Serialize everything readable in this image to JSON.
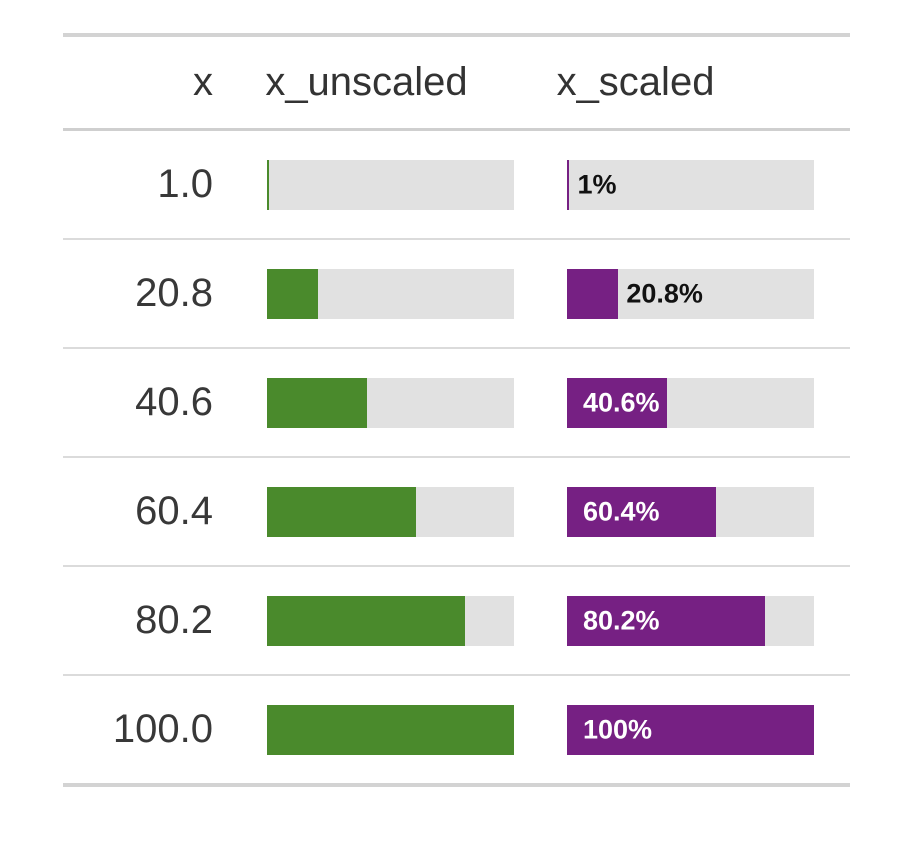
{
  "header": {
    "columns": [
      {
        "label": "x"
      },
      {
        "label": "x_unscaled"
      },
      {
        "label": "x_scaled"
      }
    ]
  },
  "rows": [
    {
      "x": "1.0",
      "unscaled_pct": 1,
      "scaled_pct": 1,
      "scaled_label": "1%",
      "label_position": "outside"
    },
    {
      "x": "20.8",
      "unscaled_pct": 20.8,
      "scaled_pct": 20.8,
      "scaled_label": "20.8%",
      "label_position": "outside"
    },
    {
      "x": "40.6",
      "unscaled_pct": 40.6,
      "scaled_pct": 40.6,
      "scaled_label": "40.6%",
      "label_position": "inside"
    },
    {
      "x": "60.4",
      "unscaled_pct": 60.4,
      "scaled_pct": 60.4,
      "scaled_label": "60.4%",
      "label_position": "inside"
    },
    {
      "x": "80.2",
      "unscaled_pct": 80.2,
      "scaled_pct": 80.2,
      "scaled_label": "80.2%",
      "label_position": "inside"
    },
    {
      "x": "100.0",
      "unscaled_pct": 100,
      "scaled_pct": 100,
      "scaled_label": "100%",
      "label_position": "inside"
    }
  ],
  "colors": {
    "unscaled_fill": "#4a8a2c",
    "scaled_fill": "#762083",
    "bar_background": "#e1e1e1",
    "label_inside_text": "#ffffff",
    "label_outside_text": "#111111",
    "header_text": "#333333",
    "body_text": "#383838",
    "rule": "#d3d3d3"
  },
  "chart_data": {
    "type": "table",
    "title": "",
    "columns": [
      "x",
      "x_unscaled",
      "x_scaled"
    ],
    "rows": [
      {
        "x": 1.0,
        "x_unscaled_bar_pct": 1,
        "x_scaled_bar_pct": 1,
        "x_scaled_label": "1%"
      },
      {
        "x": 20.8,
        "x_unscaled_bar_pct": 20.8,
        "x_scaled_bar_pct": 20.8,
        "x_scaled_label": "20.8%"
      },
      {
        "x": 40.6,
        "x_unscaled_bar_pct": 40.6,
        "x_scaled_bar_pct": 40.6,
        "x_scaled_label": "40.6%"
      },
      {
        "x": 60.4,
        "x_unscaled_bar_pct": 60.4,
        "x_scaled_bar_pct": 60.4,
        "x_scaled_label": "60.4%"
      },
      {
        "x": 80.2,
        "x_unscaled_bar_pct": 80.2,
        "x_scaled_bar_pct": 80.2,
        "x_scaled_label": "80.2%"
      },
      {
        "x": 100.0,
        "x_unscaled_bar_pct": 100,
        "x_scaled_bar_pct": 100,
        "x_scaled_label": "100%"
      }
    ],
    "bar_range": [
      0,
      100
    ],
    "bar_colors": {
      "x_unscaled": "#4a8a2c",
      "x_scaled": "#762083"
    },
    "bar_background": "#e1e1e1",
    "label_rule": "labels shown on x_scaled only; dark label right of fill when value < 40%, white label inside fill when >= 40%"
  }
}
